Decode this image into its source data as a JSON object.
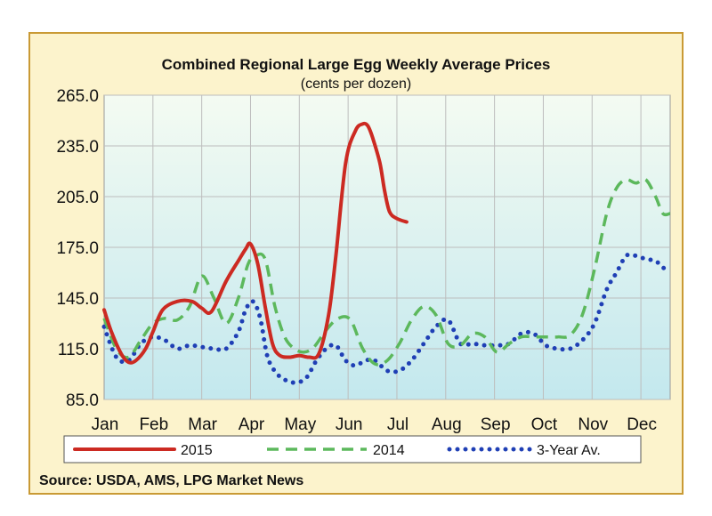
{
  "chart_data": {
    "type": "line",
    "title": "Combined Regional Large Egg Weekly Average Prices",
    "subtitle": "(cents per dozen)",
    "xlabel": "",
    "ylabel": "",
    "categories": [
      "Jan",
      "Feb",
      "Mar",
      "Apr",
      "May",
      "Jun",
      "Jul",
      "Aug",
      "Sep",
      "Oct",
      "Nov",
      "Dec"
    ],
    "y_ticks": [
      "265.0",
      "235.0",
      "205.0",
      "175.0",
      "145.0",
      "115.0",
      "85.0"
    ],
    "ylim": [
      85,
      265
    ],
    "xlim": [
      0,
      11.6
    ],
    "grid": true,
    "series": [
      {
        "name": "2015",
        "style": "solid",
        "color": "#cc2a22",
        "x": [
          0,
          0.15,
          0.35,
          0.5,
          0.65,
          0.85,
          1.0,
          1.2,
          1.5,
          1.8,
          2.0,
          2.2,
          2.5,
          2.75,
          2.9,
          3.0,
          3.15,
          3.3,
          3.45,
          3.6,
          3.8,
          4.0,
          4.2,
          4.4,
          4.6,
          4.75,
          4.95,
          5.15,
          5.3,
          5.4,
          5.5,
          5.65,
          5.75,
          5.85,
          6.0,
          6.2
        ],
        "values": [
          138,
          125,
          112,
          107,
          108,
          115,
          125,
          138,
          143,
          143,
          139,
          137,
          155,
          167,
          174,
          177,
          165,
          140,
          118,
          111,
          110,
          111,
          110,
          112,
          135,
          170,
          225,
          244,
          248,
          247,
          240,
          225,
          208,
          196,
          192,
          190
        ]
      },
      {
        "name": "2014",
        "style": "dashed",
        "color": "#5cb85c",
        "x": [
          0,
          0.25,
          0.5,
          0.75,
          1.0,
          1.25,
          1.5,
          1.75,
          2.0,
          2.25,
          2.5,
          2.75,
          2.95,
          3.1,
          3.3,
          3.5,
          3.7,
          3.9,
          4.1,
          4.3,
          4.55,
          4.8,
          5.05,
          5.3,
          5.55,
          5.8,
          6.05,
          6.3,
          6.55,
          6.8,
          7.05,
          7.3,
          7.55,
          7.8,
          8.05,
          8.3,
          8.55,
          8.8,
          9.05,
          9.3,
          9.55,
          9.8,
          10.05,
          10.3,
          10.5,
          10.7,
          10.9,
          11.1,
          11.3,
          11.45,
          11.6
        ],
        "values": [
          133,
          115,
          110,
          120,
          130,
          133,
          132,
          140,
          158,
          145,
          130,
          145,
          165,
          170,
          168,
          140,
          122,
          115,
          113,
          116,
          126,
          133,
          132,
          115,
          106,
          108,
          118,
          132,
          140,
          135,
          118,
          117,
          124,
          122,
          113,
          118,
          122,
          122,
          122,
          122,
          123,
          135,
          162,
          195,
          210,
          215,
          213,
          215,
          205,
          195,
          195
        ]
      },
      {
        "name": "3-Year Av.",
        "style": "dotted",
        "color": "#1f3fb5",
        "x": [
          0,
          0.25,
          0.5,
          0.75,
          1.0,
          1.25,
          1.5,
          1.75,
          2.0,
          2.25,
          2.5,
          2.75,
          2.9,
          3.05,
          3.2,
          3.35,
          3.55,
          3.75,
          3.95,
          4.15,
          4.35,
          4.55,
          4.75,
          4.95,
          5.15,
          5.35,
          5.55,
          5.8,
          6.05,
          6.3,
          6.55,
          6.8,
          7.05,
          7.3,
          7.55,
          7.8,
          8.05,
          8.3,
          8.55,
          8.8,
          9.05,
          9.3,
          9.55,
          9.8,
          10.05,
          10.3,
          10.5,
          10.7,
          10.9,
          11.1,
          11.3,
          11.45,
          11.6
        ],
        "values": [
          128,
          110,
          108,
          118,
          122,
          120,
          115,
          117,
          116,
          115,
          115,
          125,
          138,
          143,
          133,
          110,
          100,
          96,
          95,
          98,
          108,
          115,
          117,
          108,
          105,
          108,
          108,
          102,
          102,
          108,
          118,
          128,
          132,
          118,
          118,
          117,
          117,
          118,
          124,
          124,
          117,
          115,
          115,
          120,
          130,
          150,
          160,
          170,
          170,
          168,
          167,
          163,
          162
        ]
      }
    ],
    "legend": {
      "placement": "bottom"
    },
    "source_note": "Source: USDA, AMS, LPG  Market News"
  },
  "colors": {
    "frame_border": "#c99a35",
    "frame_background": "#fcf3cc",
    "plot_background_top": "#f4fbf2",
    "plot_background_bottom": "#c3e8ee",
    "grid": "#bdbdbd"
  }
}
